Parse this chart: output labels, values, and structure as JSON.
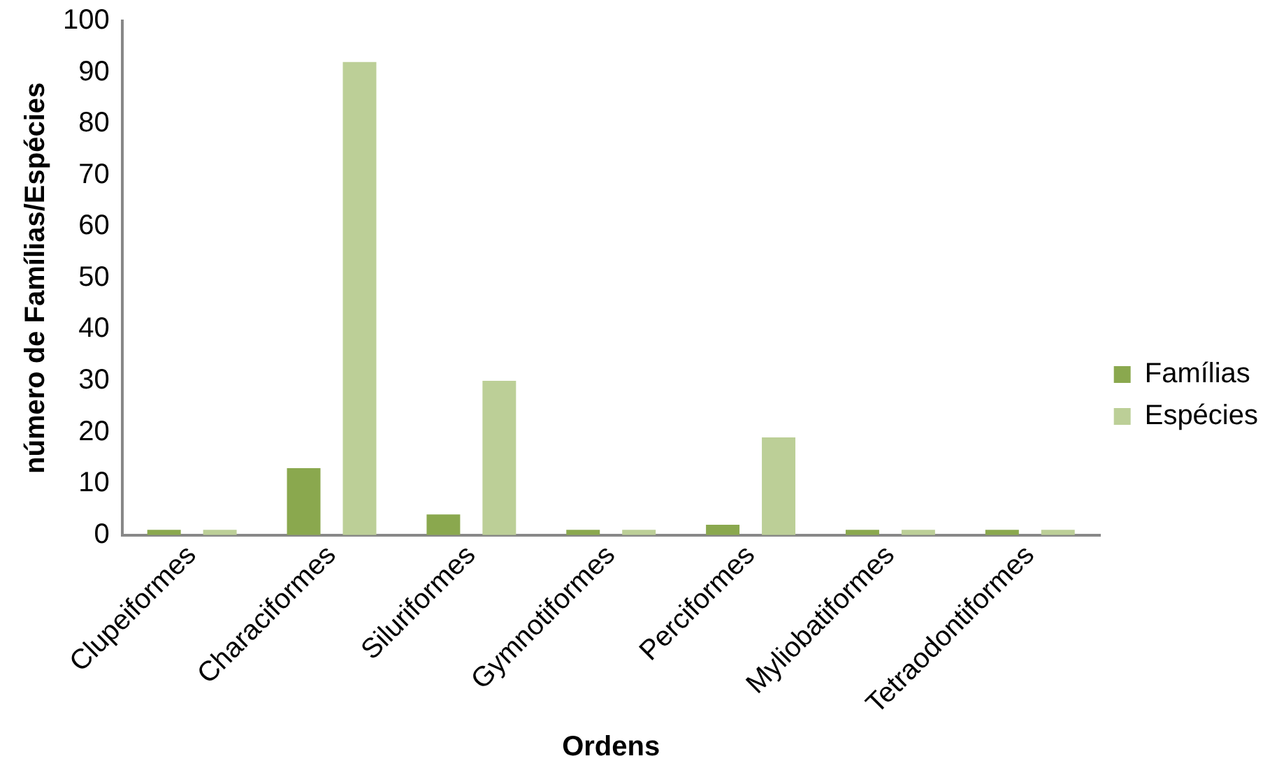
{
  "chart_data": {
    "type": "bar",
    "xlabel": "Ordens",
    "ylabel": "número de Famílias/Espécies",
    "categories": [
      "Clupeiformes",
      "Characiformes",
      "Siluriformes",
      "Gymnotiformes",
      "Perciformes",
      "Myliobatiformes",
      "Tetraodontiformes"
    ],
    "series": [
      {
        "name": "Famílias",
        "color": "#8aa84e",
        "values": [
          1,
          13,
          4,
          1,
          2,
          1,
          1
        ]
      },
      {
        "name": "Espécies",
        "color": "#bccf97",
        "values": [
          1,
          92,
          30,
          1,
          19,
          1,
          1
        ]
      }
    ],
    "ylim": [
      0,
      100
    ],
    "yticks": [
      0,
      10,
      20,
      30,
      40,
      50,
      60,
      70,
      80,
      90,
      100
    ],
    "grid": false,
    "legend": "right"
  }
}
